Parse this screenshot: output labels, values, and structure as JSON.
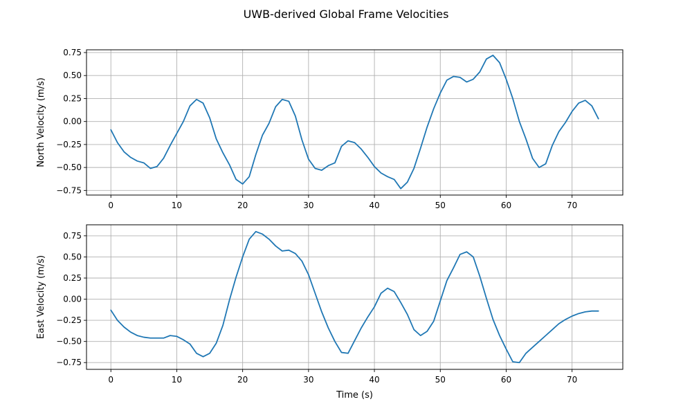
{
  "figure": {
    "title": "UWB-derived Global Frame Velocities"
  },
  "colors": {
    "series": "#1f77b4",
    "grid": "#b0b0b0"
  },
  "chart_data": [
    {
      "type": "line",
      "title": "",
      "xlabel": "",
      "ylabel": "North Velocity (m/s)",
      "xlim": [
        -3.7,
        77.7
      ],
      "ylim": [
        -0.8,
        0.78
      ],
      "xticks": [
        0,
        10,
        20,
        30,
        40,
        50,
        60,
        70
      ],
      "xtick_labels": [
        "0",
        "10",
        "20",
        "30",
        "40",
        "50",
        "60",
        "70"
      ],
      "yticks": [
        -0.75,
        -0.5,
        -0.25,
        0.0,
        0.25,
        0.5,
        0.75
      ],
      "ytick_labels": [
        "−0.75",
        "−0.50",
        "−0.25",
        "0.00",
        "0.25",
        "0.50",
        "0.75"
      ],
      "grid": true,
      "series": [
        {
          "x": [
            0,
            1,
            2,
            3,
            4,
            5,
            6,
            7,
            8,
            9,
            10,
            11,
            12,
            13,
            14,
            15,
            16,
            17,
            18,
            19,
            20,
            21,
            22,
            23,
            24,
            25,
            26,
            27,
            28,
            29,
            30,
            31,
            32,
            33,
            34,
            35,
            36,
            37,
            38,
            39,
            40,
            41,
            42,
            43,
            44,
            45,
            46,
            47,
            48,
            49,
            50,
            51,
            52,
            53,
            54,
            55,
            56,
            57,
            58,
            59,
            60,
            61,
            62,
            63,
            64,
            65,
            66,
            67,
            68,
            69,
            70,
            71,
            72,
            73,
            74
          ],
          "values": [
            -0.09,
            -0.23,
            -0.33,
            -0.39,
            -0.43,
            -0.45,
            -0.51,
            -0.49,
            -0.4,
            -0.26,
            -0.13,
            0.0,
            0.17,
            0.24,
            0.2,
            0.04,
            -0.19,
            -0.34,
            -0.47,
            -0.63,
            -0.68,
            -0.6,
            -0.36,
            -0.15,
            -0.02,
            0.16,
            0.24,
            0.22,
            0.06,
            -0.2,
            -0.41,
            -0.51,
            -0.53,
            -0.48,
            -0.45,
            -0.27,
            -0.21,
            -0.23,
            -0.3,
            -0.39,
            -0.49,
            -0.56,
            -0.6,
            -0.63,
            -0.73,
            -0.66,
            -0.51,
            -0.29,
            -0.06,
            0.14,
            0.31,
            0.45,
            0.49,
            0.48,
            0.43,
            0.46,
            0.54,
            0.68,
            0.72,
            0.64,
            0.46,
            0.25,
            0.0,
            -0.19,
            -0.4,
            -0.5,
            -0.46,
            -0.26,
            -0.11,
            -0.01,
            0.11,
            0.2,
            0.23,
            0.17,
            0.03
          ]
        }
      ]
    },
    {
      "type": "line",
      "title": "",
      "xlabel": "Time (s)",
      "ylabel": "East Velocity (m/s)",
      "xlim": [
        -3.7,
        77.7
      ],
      "ylim": [
        -0.83,
        0.88
      ],
      "xticks": [
        0,
        10,
        20,
        30,
        40,
        50,
        60,
        70
      ],
      "xtick_labels": [
        "0",
        "10",
        "20",
        "30",
        "40",
        "50",
        "60",
        "70"
      ],
      "yticks": [
        -0.75,
        -0.5,
        -0.25,
        0.0,
        0.25,
        0.5,
        0.75
      ],
      "ytick_labels": [
        "−0.75",
        "−0.50",
        "−0.25",
        "0.00",
        "0.25",
        "0.50",
        "0.75"
      ],
      "grid": true,
      "series": [
        {
          "x": [
            0,
            1,
            2,
            3,
            4,
            5,
            6,
            7,
            8,
            9,
            10,
            11,
            12,
            13,
            14,
            15,
            16,
            17,
            18,
            19,
            20,
            21,
            22,
            23,
            24,
            25,
            26,
            27,
            28,
            29,
            30,
            31,
            32,
            33,
            34,
            35,
            36,
            37,
            38,
            39,
            40,
            41,
            42,
            43,
            44,
            45,
            46,
            47,
            48,
            49,
            50,
            51,
            52,
            53,
            54,
            55,
            56,
            57,
            58,
            59,
            60,
            61,
            62,
            63,
            64,
            65,
            66,
            67,
            68,
            69,
            70,
            71,
            72,
            73,
            74
          ],
          "values": [
            -0.13,
            -0.25,
            -0.33,
            -0.39,
            -0.43,
            -0.45,
            -0.46,
            -0.46,
            -0.46,
            -0.43,
            -0.44,
            -0.48,
            -0.53,
            -0.64,
            -0.68,
            -0.64,
            -0.52,
            -0.31,
            -0.01,
            0.26,
            0.5,
            0.71,
            0.8,
            0.77,
            0.71,
            0.63,
            0.57,
            0.58,
            0.54,
            0.45,
            0.29,
            0.07,
            -0.15,
            -0.34,
            -0.5,
            -0.63,
            -0.64,
            -0.49,
            -0.34,
            -0.21,
            -0.09,
            0.07,
            0.13,
            0.09,
            -0.04,
            -0.18,
            -0.36,
            -0.43,
            -0.38,
            -0.26,
            -0.02,
            0.22,
            0.37,
            0.53,
            0.56,
            0.5,
            0.27,
            0.01,
            -0.24,
            -0.43,
            -0.59,
            -0.74,
            -0.75,
            -0.64,
            -0.57,
            -0.5,
            -0.43,
            -0.36,
            -0.29,
            -0.24,
            -0.2,
            -0.17,
            -0.15,
            -0.14,
            -0.14
          ]
        }
      ]
    }
  ]
}
